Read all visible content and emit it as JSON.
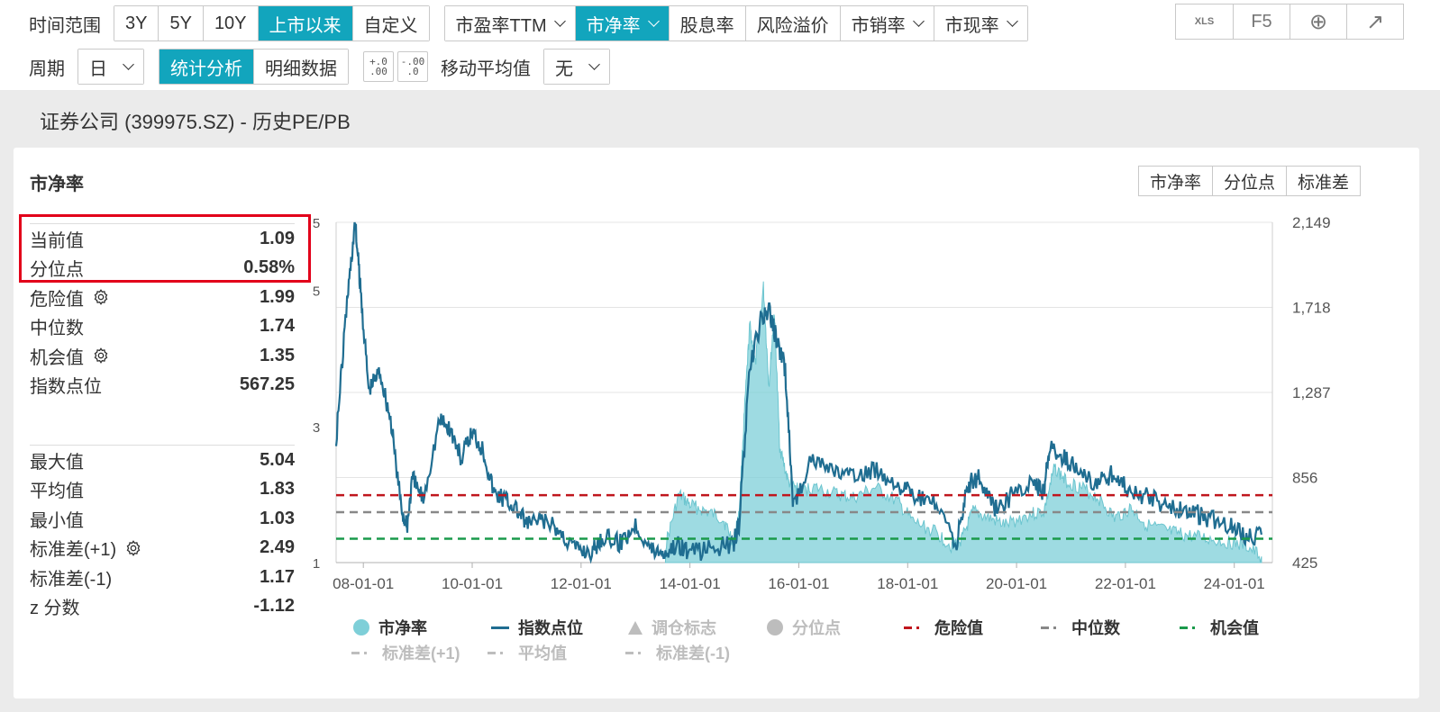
{
  "toolbar": {
    "time_range_label": "时间范围",
    "time_ranges": [
      "3Y",
      "5Y",
      "10Y",
      "上市以来",
      "自定义"
    ],
    "time_range_active": 3,
    "metrics": [
      "市盈率TTM",
      "市净率",
      "股息率",
      "风险溢价",
      "市销率",
      "市现率"
    ],
    "metric_active": 1,
    "icons": [
      "xls-export-icon",
      "refresh-icon",
      "add-icon",
      "open-external-icon"
    ],
    "icon_labels": [
      "XLS",
      "F5",
      "⊕",
      "↗"
    ],
    "period_label": "周期",
    "period_value": "日",
    "view_tabs": [
      "统计分析",
      "明细数据"
    ],
    "view_active": 0,
    "decimal_inc_label": "+.0\n.00",
    "decimal_dec_label": "-.00\n.0",
    "ma_label": "移动平均值",
    "ma_value": "无"
  },
  "page": {
    "title": "证券公司 (399975.SZ) - 历史PE/PB",
    "card_title": "市净率",
    "right_tabs": [
      "市净率",
      "分位点",
      "标准差"
    ]
  },
  "stats_top": [
    {
      "label": "当前值",
      "value": "1.09"
    },
    {
      "label": "分位点",
      "value": "0.58%"
    },
    {
      "label": "危险值",
      "value": "1.99",
      "gear": true
    },
    {
      "label": "中位数",
      "value": "1.74"
    },
    {
      "label": "机会值",
      "value": "1.35",
      "gear": true
    },
    {
      "label": "指数点位",
      "value": "567.25"
    }
  ],
  "stats_bottom": [
    {
      "label": "最大值",
      "value": "5.04"
    },
    {
      "label": "平均值",
      "value": "1.83"
    },
    {
      "label": "最小值",
      "value": "1.03"
    },
    {
      "label": "标准差(+1)",
      "value": "2.49",
      "gear": true
    },
    {
      "label": "标准差(-1)",
      "value": "1.17"
    },
    {
      "label": "z 分数",
      "value": "-1.12"
    }
  ],
  "chart_data": {
    "type": "line",
    "x_ticks": [
      "08-01-01",
      "10-01-01",
      "12-01-01",
      "14-01-01",
      "16-01-01",
      "18-01-01",
      "20-01-01",
      "22-01-01",
      "24-01-01"
    ],
    "y_left_ticks": [
      "1",
      "3",
      "5",
      "5"
    ],
    "y_left_lim": [
      1,
      6
    ],
    "y_right_ticks": [
      "425",
      "856",
      "1,287",
      "1,718",
      "2,149"
    ],
    "y_right_lim": [
      425,
      2149
    ],
    "x_range": [
      2007.5,
      2024.7
    ],
    "series": [
      {
        "name": "市净率",
        "kind": "area",
        "color": "#7ecfd8",
        "x": [
          2013.55,
          2013.8,
          2014.0,
          2014.3,
          2014.6,
          2014.8,
          2014.9,
          2015.0,
          2015.1,
          2015.2,
          2015.35,
          2015.45,
          2015.55,
          2015.65,
          2015.8,
          2016.0,
          2016.3,
          2016.7,
          2017.0,
          2017.4,
          2017.8,
          2018.1,
          2018.5,
          2018.8,
          2019.0,
          2019.2,
          2019.5,
          2019.8,
          2020.2,
          2020.5,
          2020.7,
          2020.9,
          2021.2,
          2021.5,
          2021.8,
          2022.1,
          2022.4,
          2022.8,
          2023.1,
          2023.5,
          2023.9,
          2024.2,
          2024.5
        ],
        "y": [
          1.25,
          2.0,
          1.85,
          1.75,
          1.65,
          1.3,
          1.7,
          3.2,
          4.5,
          3.9,
          5.04,
          3.6,
          4.7,
          2.7,
          2.2,
          2.05,
          2.1,
          2.0,
          1.95,
          2.1,
          1.9,
          1.6,
          1.45,
          1.25,
          1.35,
          1.75,
          1.65,
          1.55,
          1.7,
          1.75,
          2.4,
          2.2,
          2.1,
          1.95,
          1.65,
          1.8,
          1.55,
          1.45,
          1.4,
          1.35,
          1.3,
          1.25,
          1.09
        ]
      },
      {
        "name": "指数点位",
        "kind": "line",
        "color": "#1f6d91",
        "axis": "right",
        "x": [
          2007.5,
          2007.7,
          2007.85,
          2007.95,
          2008.1,
          2008.3,
          2008.5,
          2008.7,
          2008.8,
          2008.9,
          2009.1,
          2009.4,
          2009.6,
          2009.8,
          2010.0,
          2010.2,
          2010.4,
          2010.6,
          2010.8,
          2011.0,
          2011.3,
          2011.6,
          2011.9,
          2012.2,
          2012.4,
          2012.7,
          2013.0,
          2013.3,
          2013.55,
          2013.8,
          2014.0,
          2014.4,
          2014.8,
          2014.9,
          2015.1,
          2015.3,
          2015.45,
          2015.6,
          2015.75,
          2015.9,
          2016.2,
          2016.6,
          2017.0,
          2017.4,
          2017.8,
          2018.1,
          2018.5,
          2018.9,
          2019.1,
          2019.3,
          2019.6,
          2019.9,
          2020.3,
          2020.5,
          2020.6,
          2020.9,
          2021.2,
          2021.5,
          2021.8,
          2022.1,
          2022.5,
          2022.9,
          2023.2,
          2023.5,
          2023.9,
          2024.2,
          2024.5
        ],
        "y": [
          1050,
          1750,
          2149,
          1800,
          1300,
          1400,
          1150,
          700,
          600,
          850,
          750,
          1150,
          1100,
          950,
          1090,
          1000,
          780,
          750,
          700,
          620,
          640,
          580,
          500,
          480,
          560,
          520,
          620,
          490,
          480,
          520,
          470,
          500,
          520,
          620,
          1400,
          1650,
          1700,
          1550,
          1400,
          700,
          950,
          900,
          850,
          900,
          830,
          760,
          720,
          520,
          820,
          860,
          700,
          760,
          820,
          780,
          1000,
          950,
          870,
          830,
          880,
          780,
          750,
          700,
          690,
          650,
          620,
          560,
          567
        ]
      }
    ],
    "hlines": [
      {
        "name": "危险值",
        "value": 1.99,
        "color": "#c0161d"
      },
      {
        "name": "中位数",
        "value": 1.74,
        "color": "#888888"
      },
      {
        "name": "机会值",
        "value": 1.35,
        "color": "#1a9a4b"
      }
    ],
    "legend": [
      {
        "name": "市净率",
        "symbol": "circle",
        "color": "#7ecfd8",
        "active": true
      },
      {
        "name": "指数点位",
        "symbol": "line",
        "color": "#1f6d91",
        "active": true
      },
      {
        "name": "调仓标志",
        "symbol": "triangle",
        "color": "#bdbdbd",
        "active": false
      },
      {
        "name": "分位点",
        "symbol": "circle",
        "color": "#bdbdbd",
        "active": false
      },
      {
        "name": "危险值",
        "symbol": "dash",
        "color": "#c0161d",
        "active": true
      },
      {
        "name": "中位数",
        "symbol": "dash",
        "color": "#888888",
        "active": true
      },
      {
        "name": "机会值",
        "symbol": "dash",
        "color": "#1a9a4b",
        "active": true
      },
      {
        "name": "标准差(+1)",
        "symbol": "dash",
        "color": "#bdbdbd",
        "active": false
      },
      {
        "name": "平均值",
        "symbol": "dash",
        "color": "#bdbdbd",
        "active": false
      },
      {
        "name": "标准差(-1)",
        "symbol": "dash",
        "color": "#bdbdbd",
        "active": false
      }
    ],
    "grid": true
  }
}
